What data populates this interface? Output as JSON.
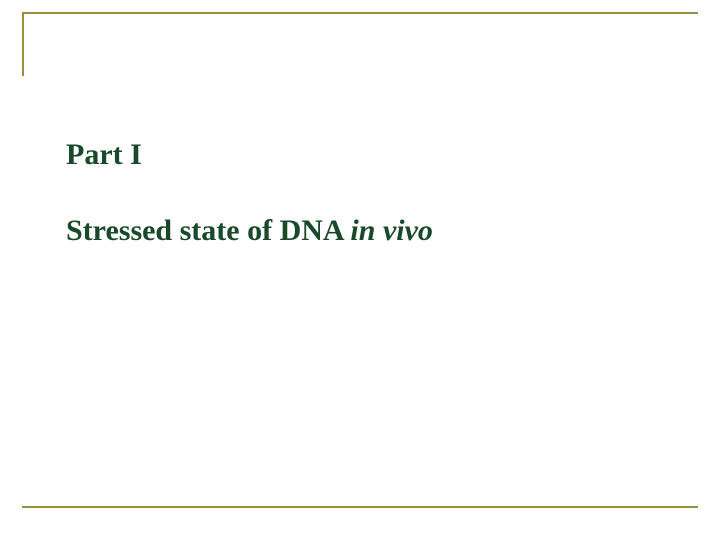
{
  "rule_color": "#9a8f3c",
  "text_color": "#184a2a",
  "part_label": "Part I",
  "title_prefix": "Stressed state of DNA ",
  "title_italic": "in vivo"
}
